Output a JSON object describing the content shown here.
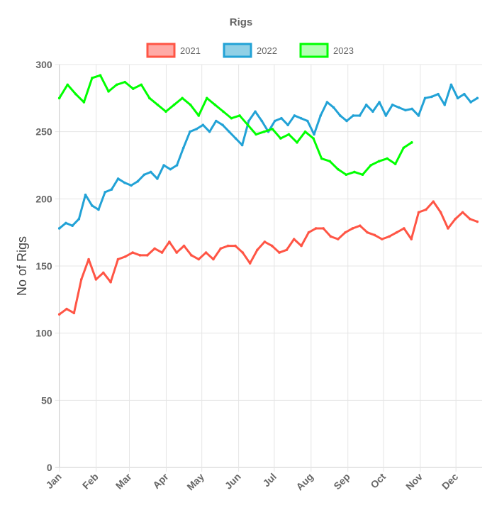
{
  "chart_data": {
    "type": "line",
    "title": "Rigs",
    "xlabel": "",
    "ylabel": "No of Rigs",
    "ylim": [
      0,
      300
    ],
    "yticks": [
      0,
      50,
      100,
      150,
      200,
      250,
      300
    ],
    "xticks": [
      "Jan",
      "Feb",
      "Mar",
      "Apr",
      "May",
      "Jun",
      "Jul",
      "Aug",
      "Sep",
      "Oct",
      "Nov",
      "Dec"
    ],
    "grid": true,
    "legend_position": "top",
    "x_unit": "week of year",
    "series": [
      {
        "name": "2021",
        "color": "#ff5545",
        "fill": "#ffaaa6",
        "values": [
          114,
          118,
          115,
          140,
          155,
          140,
          145,
          138,
          155,
          157,
          160,
          158,
          158,
          163,
          160,
          168,
          160,
          165,
          158,
          155,
          160,
          155,
          163,
          165,
          165,
          160,
          152,
          162,
          168,
          165,
          160,
          162,
          170,
          165,
          175,
          178,
          178,
          172,
          170,
          175,
          178,
          180,
          175,
          173,
          170,
          172,
          175,
          178,
          170,
          190,
          192,
          198,
          190,
          178,
          185,
          190,
          185,
          183
        ]
      },
      {
        "name": "2022",
        "color": "#22a2d6",
        "fill": "#90d0e6",
        "values": [
          178,
          182,
          180,
          185,
          203,
          195,
          192,
          205,
          207,
          215,
          212,
          210,
          213,
          218,
          220,
          215,
          225,
          222,
          225,
          238,
          250,
          252,
          255,
          250,
          258,
          255,
          250,
          245,
          240,
          258,
          265,
          258,
          250,
          258,
          260,
          255,
          262,
          260,
          258,
          248,
          262,
          272,
          268,
          262,
          258,
          262,
          262,
          270,
          265,
          272,
          262,
          270,
          268,
          266,
          267,
          262,
          275,
          276,
          278,
          270,
          285,
          275,
          278,
          272,
          275
        ]
      },
      {
        "name": "2023",
        "color": "#00ff00",
        "fill": "#b3ffb3",
        "values": [
          275,
          285,
          278,
          272,
          290,
          292,
          280,
          285,
          287,
          282,
          285,
          275,
          270,
          265,
          270,
          275,
          270,
          262,
          275,
          270,
          265,
          260,
          262,
          255,
          248,
          250,
          252,
          245,
          248,
          242,
          250,
          245,
          230,
          228,
          222,
          218,
          220,
          218,
          225,
          228,
          230,
          226,
          238,
          242
        ]
      }
    ]
  }
}
